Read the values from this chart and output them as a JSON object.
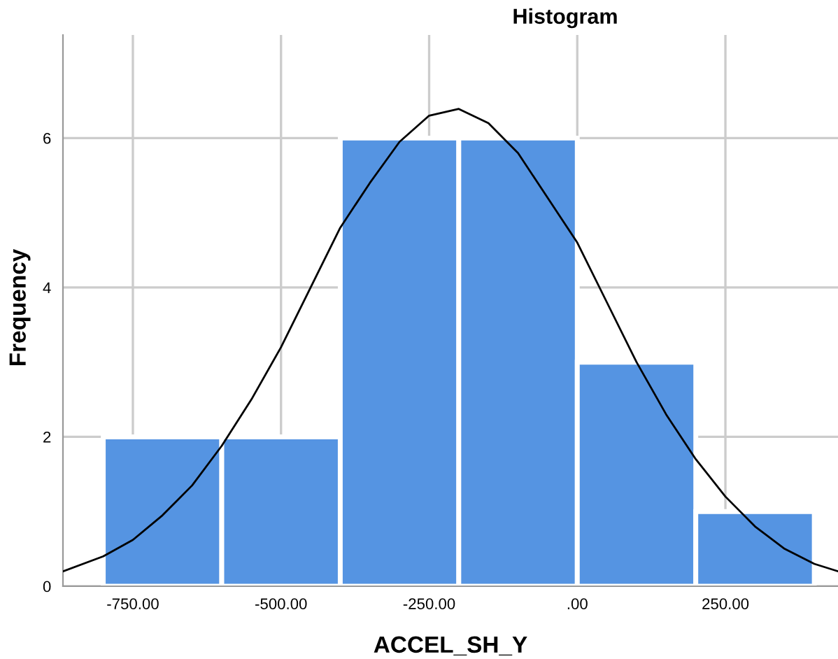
{
  "chart_data": {
    "type": "histogram",
    "title": "Histogram",
    "xlabel": "ACCEL_SH_Y",
    "ylabel": "Frequency",
    "bins": [
      -800,
      -600,
      -400,
      -200,
      0,
      200,
      400
    ],
    "series": [
      {
        "color": "#5594e2",
        "values": [
          2,
          2,
          6,
          6,
          3,
          1
        ]
      },
      {
        "type": "line",
        "color": "#000000",
        "x": [
          -868,
          -800,
          -750,
          -700,
          -650,
          -600,
          -550,
          -500,
          -450,
          -400,
          -350,
          -300,
          -250,
          -200,
          -150,
          -100,
          -50,
          0,
          50,
          100,
          150,
          200,
          250,
          300,
          350,
          400,
          440
        ],
        "values": [
          0.2,
          0.4,
          0.62,
          0.95,
          1.35,
          1.88,
          2.5,
          3.2,
          4.0,
          4.8,
          5.4,
          5.95,
          6.3,
          6.39,
          6.2,
          5.8,
          5.2,
          4.6,
          3.8,
          3.0,
          2.3,
          1.7,
          1.2,
          0.8,
          0.5,
          0.3,
          0.2
        ]
      }
    ],
    "xlim": [
      -868,
      440
    ],
    "ylim": [
      0,
      7.38
    ],
    "xticks": [
      {
        "value": -750,
        "label": "-750.00"
      },
      {
        "value": -500,
        "label": "-500.00"
      },
      {
        "value": -250,
        "label": "-250.00"
      },
      {
        "value": 0,
        "label": ".00"
      },
      {
        "value": 250,
        "label": "250.00"
      }
    ],
    "yticks": [
      0,
      2,
      4,
      6
    ],
    "grid": true,
    "marker": "none",
    "line_style": "solid"
  }
}
